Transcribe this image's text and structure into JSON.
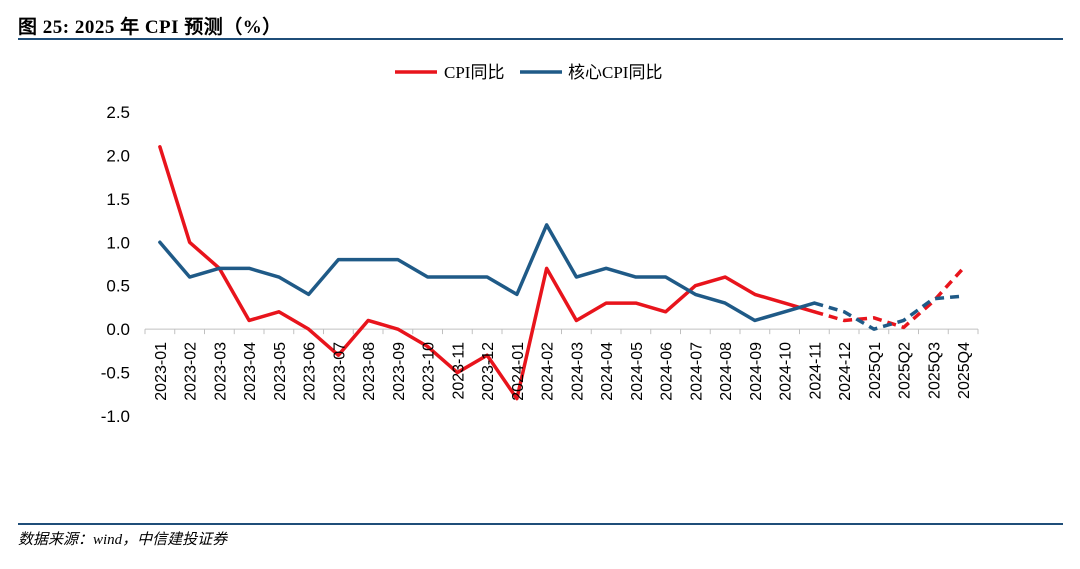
{
  "header": {
    "title": "图 25: 2025 年 CPI 预测（%）"
  },
  "footer": {
    "source": "数据来源：wind，中信建投证券"
  },
  "chart_data": {
    "type": "line",
    "title": "图 25: 2025 年 CPI 预测（%）",
    "xlabel": "",
    "ylabel": "",
    "ylim": [
      -1.0,
      2.5
    ],
    "yticks": [
      "2.5",
      "2.0",
      "1.5",
      "1.0",
      "0.5",
      "0.0",
      "-0.5",
      "-1.0"
    ],
    "grid": false,
    "legend_position": "top-center",
    "categories": [
      "2023-01",
      "2023-02",
      "2023-03",
      "2023-04",
      "2023-05",
      "2023-06",
      "2023-07",
      "2023-08",
      "2023-09",
      "2023-10",
      "2023-11",
      "2023-12",
      "2024-01",
      "2024-02",
      "2024-03",
      "2024-04",
      "2024-05",
      "2024-06",
      "2024-07",
      "2024-08",
      "2024-09",
      "2024-10",
      "2024-11",
      "2024-12",
      "2025Q1",
      "2025Q2",
      "2025Q3",
      "2025Q4"
    ],
    "forecast_start_index": 22,
    "series": [
      {
        "name": "CPI同比",
        "color": "#e8141c",
        "values": [
          2.1,
          1.0,
          0.7,
          0.1,
          0.2,
          0.0,
          -0.3,
          0.1,
          0.0,
          -0.2,
          -0.5,
          -0.3,
          -0.8,
          0.7,
          0.1,
          0.3,
          0.3,
          0.2,
          0.5,
          0.6,
          0.4,
          0.3,
          0.2,
          0.1,
          0.13,
          0.02,
          0.32,
          0.7
        ]
      },
      {
        "name": "核心CPI同比",
        "color": "#1f5a87",
        "values": [
          1.0,
          0.6,
          0.7,
          0.7,
          0.6,
          0.4,
          0.8,
          0.8,
          0.8,
          0.6,
          0.6,
          0.6,
          0.4,
          1.2,
          0.6,
          0.7,
          0.6,
          0.6,
          0.4,
          0.3,
          0.1,
          0.2,
          0.3,
          0.2,
          0.0,
          0.1,
          0.35,
          0.38
        ]
      }
    ]
  }
}
